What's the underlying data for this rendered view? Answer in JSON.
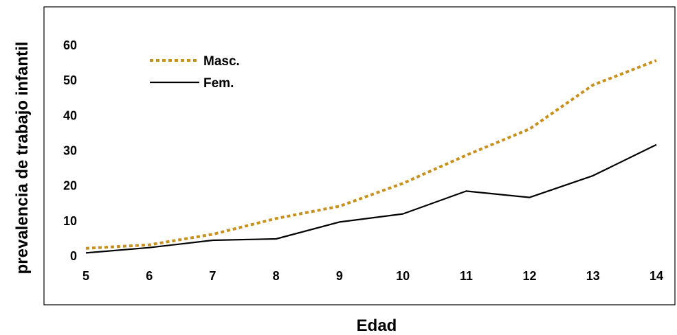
{
  "chart_data": {
    "type": "line",
    "title": "",
    "xlabel": "Edad",
    "ylabel": "prevalencia de trabajo infantil",
    "x": [
      5,
      6,
      7,
      8,
      9,
      10,
      11,
      12,
      13,
      14
    ],
    "x_tick_labels": [
      "5",
      "6",
      "7",
      "8",
      "9",
      "10",
      "11",
      "12",
      "13",
      "14"
    ],
    "y_tick_labels": [
      "0",
      "10",
      "20",
      "30",
      "40",
      "50",
      "60"
    ],
    "y_ticks": [
      0,
      10,
      20,
      30,
      40,
      50,
      60
    ],
    "ylim": [
      0,
      60
    ],
    "grid": false,
    "legend_position": "top-left",
    "series": [
      {
        "name": "Masc.",
        "style": "dotted",
        "color": "#C8901E",
        "values": [
          2.0,
          3.0,
          6.0,
          10.5,
          14.0,
          20.5,
          28.5,
          36.0,
          48.5,
          55.5
        ]
      },
      {
        "name": "Fem.",
        "style": "solid",
        "color": "#000000",
        "values": [
          0.7,
          2.2,
          4.3,
          4.7,
          9.5,
          11.8,
          18.3,
          16.5,
          22.7,
          31.5
        ]
      }
    ]
  }
}
